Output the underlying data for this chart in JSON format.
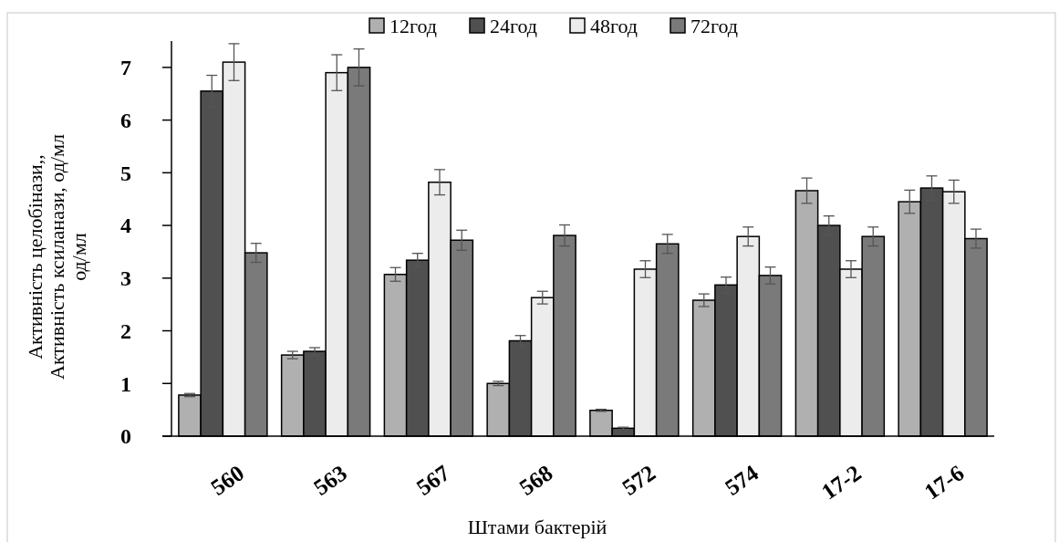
{
  "chart_data": {
    "type": "bar",
    "xlabel": "Штами бактерій",
    "ylabel": "Активність целобінази,,\nАктивність ксиланази, од/мл\nод/мл",
    "categories": [
      "560",
      "563",
      "567",
      "568",
      "572",
      "574",
      "17-2",
      "17-6"
    ],
    "series": [
      {
        "name": "12год",
        "color": "#b0b0b0",
        "values": [
          0.78,
          1.54,
          3.07,
          1.0,
          0.49,
          2.58,
          4.66,
          4.45
        ],
        "errors": [
          0.03,
          0.07,
          0.13,
          0.04,
          0.02,
          0.12,
          0.24,
          0.22
        ]
      },
      {
        "name": "24год",
        "color": "#505050",
        "values": [
          6.55,
          1.61,
          3.34,
          1.81,
          0.15,
          2.87,
          4.0,
          4.71
        ],
        "errors": [
          0.3,
          0.07,
          0.13,
          0.1,
          0.02,
          0.15,
          0.18,
          0.23
        ]
      },
      {
        "name": "48год",
        "color": "#ececec",
        "values": [
          7.1,
          6.9,
          4.82,
          2.63,
          3.17,
          3.79,
          3.17,
          4.64
        ],
        "errors": [
          0.35,
          0.34,
          0.24,
          0.12,
          0.16,
          0.18,
          0.16,
          0.22
        ]
      },
      {
        "name": "72год",
        "color": "#7a7a7a",
        "values": [
          3.48,
          7.0,
          3.72,
          3.81,
          3.65,
          3.05,
          3.79,
          3.75
        ],
        "errors": [
          0.18,
          0.35,
          0.19,
          0.2,
          0.18,
          0.16,
          0.18,
          0.18
        ]
      }
    ],
    "ylim": [
      0,
      7.5
    ],
    "yticks": [
      0,
      1,
      2,
      3,
      4,
      5,
      6,
      7
    ],
    "grid": false,
    "legend": "top"
  }
}
